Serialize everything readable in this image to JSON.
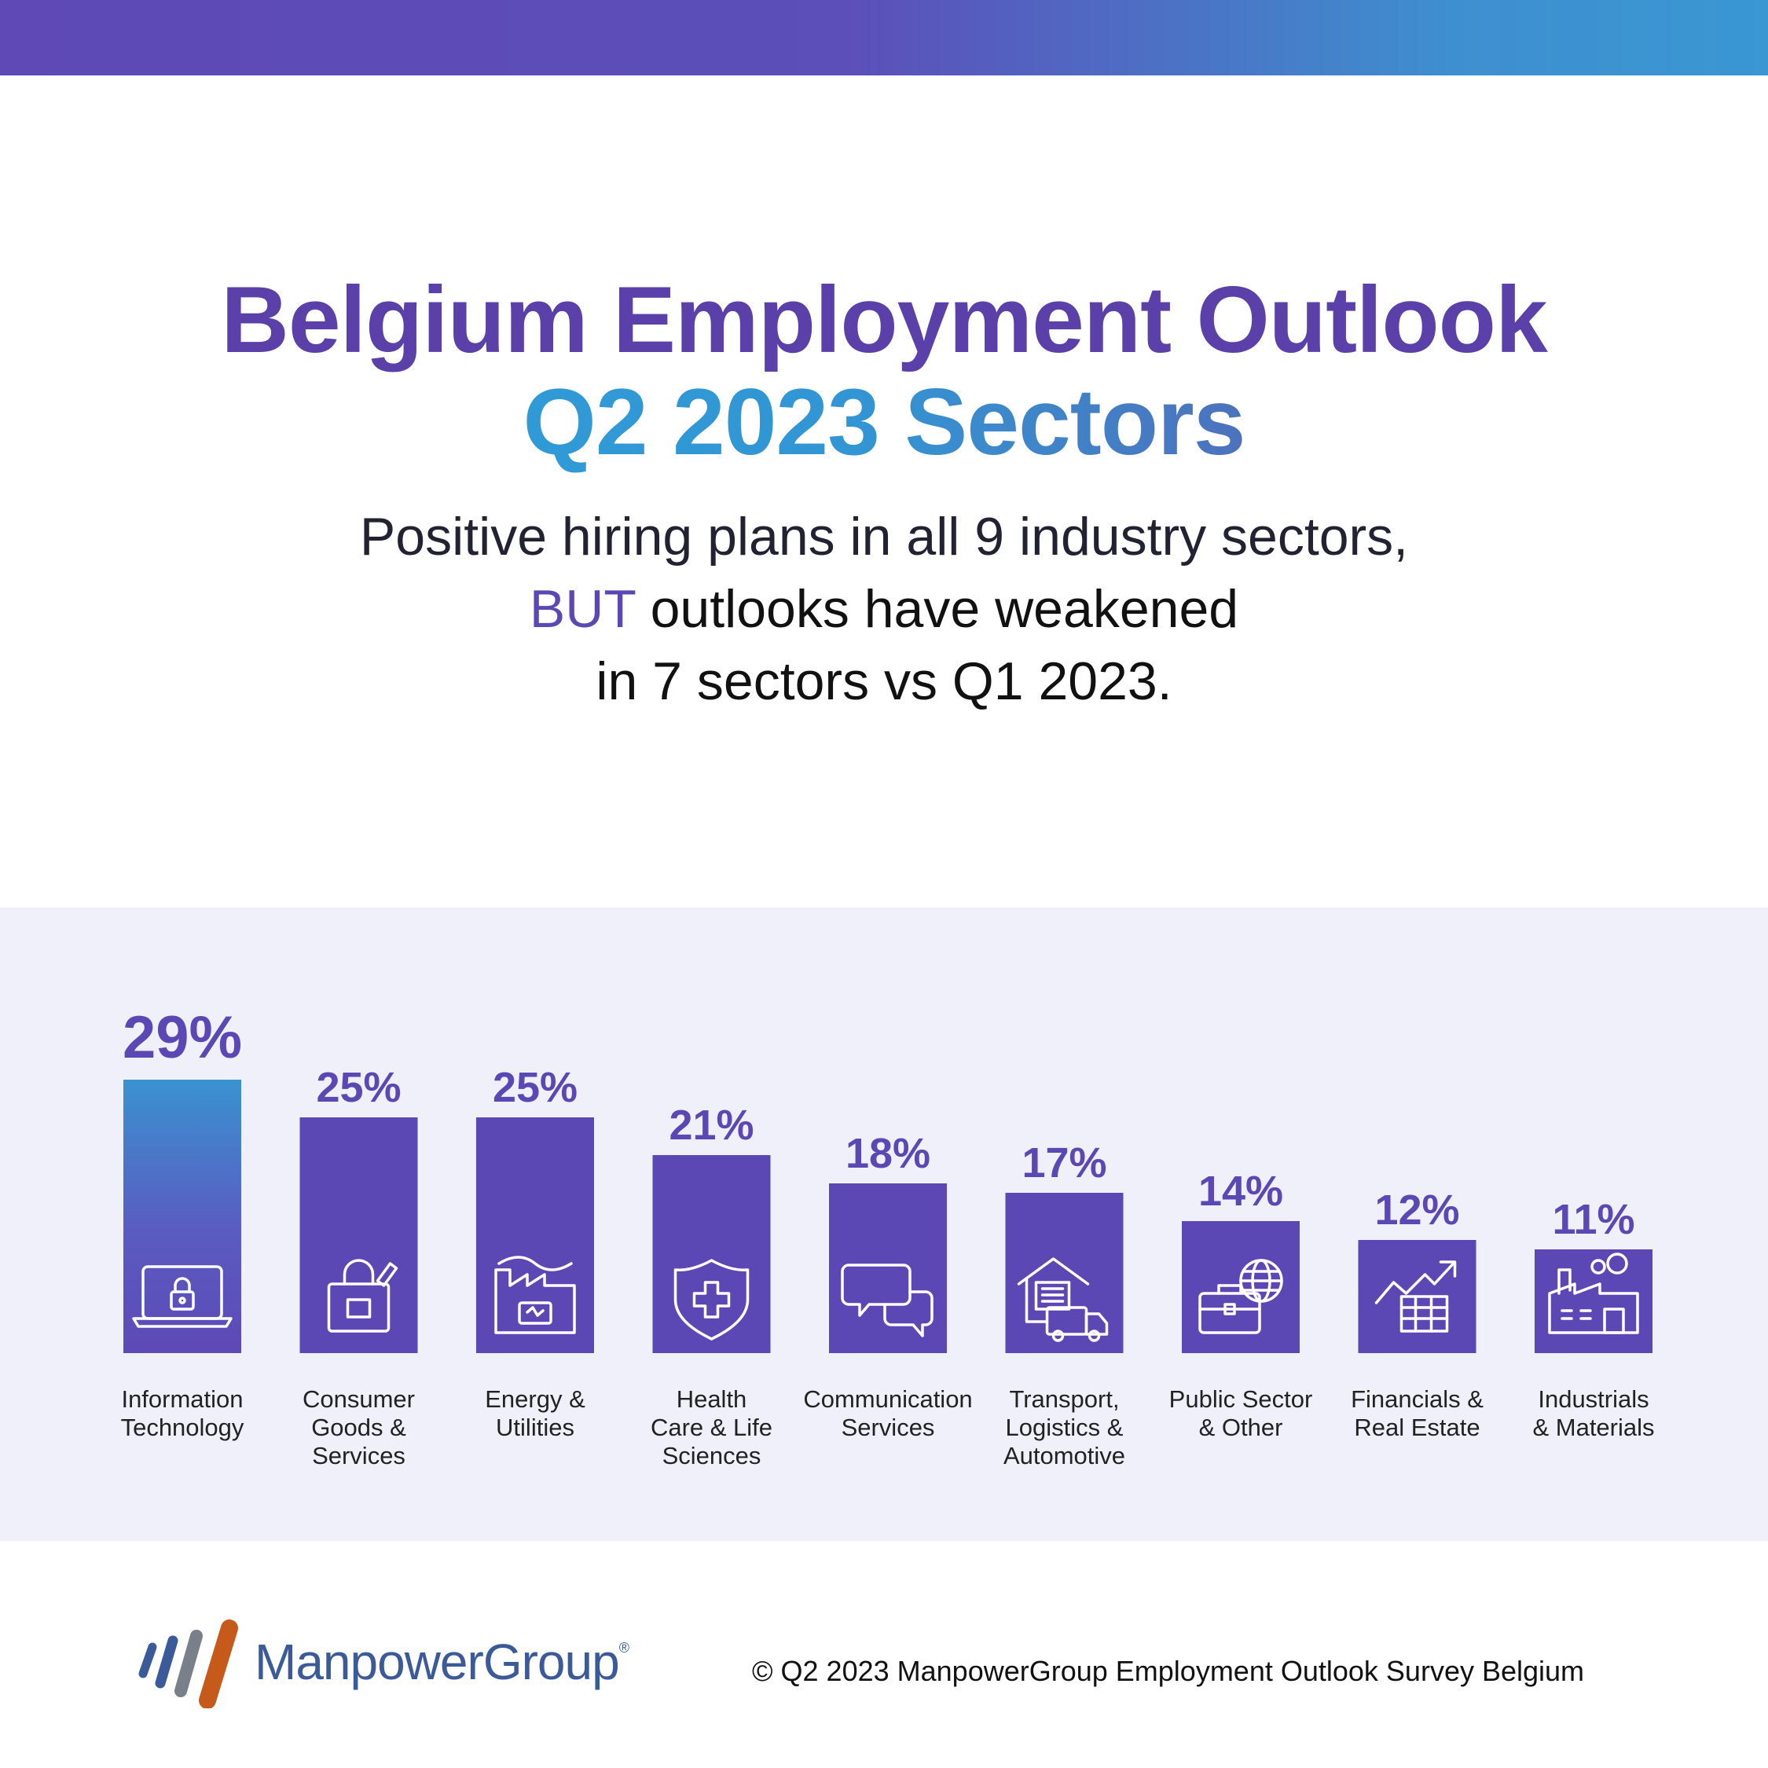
{
  "colors": {
    "primary_purple": "#5c48b4",
    "blue": "#3a97d2",
    "panel_bg": "#f0f0fa",
    "text": "#111111",
    "brand_blue": "#3b5a9a",
    "logo_orange": "#c65a1a",
    "logo_gray": "#7a8089"
  },
  "header": {
    "title_line1": "Belgium Employment Outlook",
    "title_line2": "Q2 2023 Sectors"
  },
  "subtitle": {
    "line1": "Positive hiring plans in all 9 industry sectors,",
    "line2_accent": "BUT",
    "line2_rest": " outlooks have weakened",
    "line3": "in 7 sectors vs Q1 2023."
  },
  "chart_data": {
    "type": "bar",
    "categories": [
      "Information Technology",
      "Consumer Goods & Services",
      "Energy & Utilities",
      "Health Care & Life Sciences",
      "Communication Services",
      "Transport, Logistics & Automotive",
      "Public Sector & Other",
      "Financials & Real Estate",
      "Industrials & Materials"
    ],
    "category_label_lines": [
      [
        "Information",
        "Technology"
      ],
      [
        "Consumer",
        "Goods &",
        "Services"
      ],
      [
        "Energy &",
        "Utilities"
      ],
      [
        "Health",
        "Care & Life",
        "Sciences"
      ],
      [
        "Communication",
        "Services"
      ],
      [
        "Transport,",
        "Logistics &",
        "Automotive"
      ],
      [
        "Public Sector",
        "& Other"
      ],
      [
        "Financials &",
        "Real Estate"
      ],
      [
        "Industrials",
        "& Materials"
      ]
    ],
    "values": [
      29,
      25,
      25,
      21,
      18,
      17,
      14,
      12,
      11
    ],
    "value_labels": [
      "29%",
      "25%",
      "25%",
      "21%",
      "18%",
      "17%",
      "14%",
      "12%",
      "11%"
    ],
    "unit": "%",
    "icons": [
      "laptop-lock-icon",
      "shopping-bag-icon",
      "factory-energy-icon",
      "medical-shield-icon",
      "chat-bubbles-icon",
      "warehouse-truck-icon",
      "briefcase-globe-icon",
      "growth-chart-icon",
      "industrial-plant-icon"
    ],
    "title": "",
    "xlabel": "",
    "ylabel": "",
    "ylim": [
      0,
      29
    ],
    "grid": false,
    "legend": "none",
    "highlight_index": 0
  },
  "footer": {
    "brand": "ManpowerGroup",
    "registered": "®",
    "copyright": "© Q2 2023 ManpowerGroup Employment Outlook Survey Belgium"
  }
}
